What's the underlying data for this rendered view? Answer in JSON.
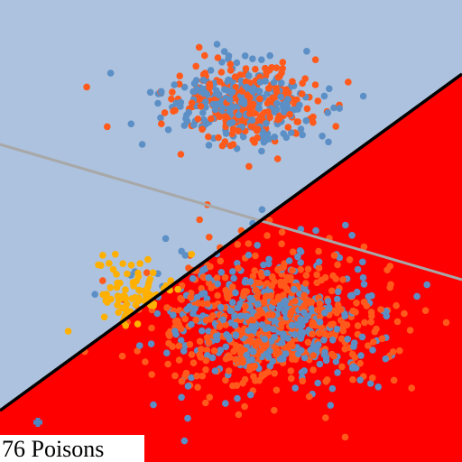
{
  "label": "76 Poisons"
}
